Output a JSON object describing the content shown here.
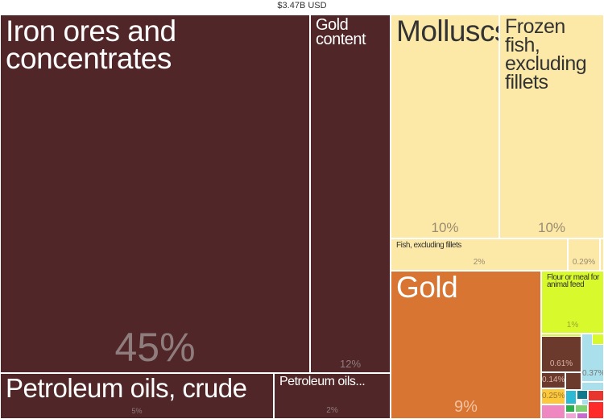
{
  "total_label": "$3.47B USD",
  "chart_data": {
    "type": "treemap",
    "total": "$3.47B USD",
    "items": [
      {
        "label": "Iron ores and concentrates",
        "pct": "45%",
        "value": 45,
        "color": "#512628"
      },
      {
        "label": "Gold content",
        "pct": "12%",
        "value": 12,
        "color": "#512628"
      },
      {
        "label": "Petroleum oils, crude",
        "pct": "5%",
        "value": 5,
        "color": "#512628"
      },
      {
        "label": "Petroleum oils...",
        "pct": "2%",
        "value": 2,
        "color": "#512628"
      },
      {
        "label": "Molluscs",
        "pct": "10%",
        "value": 10,
        "color": "#fce9a7"
      },
      {
        "label": "Frozen fish, excluding fillets",
        "pct": "10%",
        "value": 10,
        "color": "#fce9a7"
      },
      {
        "label": "Fish, excluding fillets",
        "pct": "2%",
        "value": 2,
        "color": "#fce9a7"
      },
      {
        "label": "",
        "pct": "0.29%",
        "value": 0.29,
        "color": "#fce9a7"
      },
      {
        "label": "Gold",
        "pct": "9%",
        "value": 9,
        "color": "#d97533"
      },
      {
        "label": "Flour or meal for animal feed",
        "pct": "1%",
        "value": 1,
        "color": "#d8f92c"
      },
      {
        "label": "",
        "pct": "0.61%",
        "value": 0.61,
        "color": "#6b3a2d"
      },
      {
        "label": "",
        "pct": "0.37%",
        "value": 0.37,
        "color": "#a9e0ec"
      },
      {
        "label": "",
        "pct": "0.14%",
        "value": 0.14,
        "color": "#6b3a2d"
      },
      {
        "label": "",
        "pct": "0.25%",
        "value": 0.25,
        "color": "#fbc83e"
      }
    ]
  }
}
